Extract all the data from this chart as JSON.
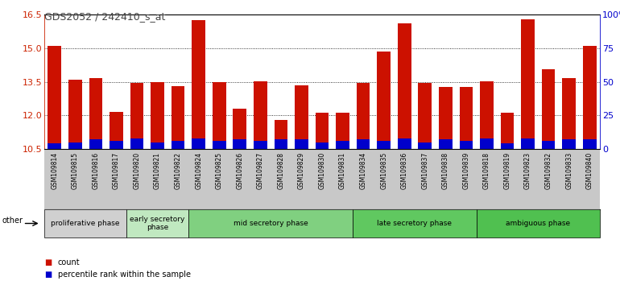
{
  "title": "GDS2052 / 242410_s_at",
  "samples": [
    "GSM109814",
    "GSM109815",
    "GSM109816",
    "GSM109817",
    "GSM109820",
    "GSM109821",
    "GSM109822",
    "GSM109824",
    "GSM109825",
    "GSM109826",
    "GSM109827",
    "GSM109828",
    "GSM109829",
    "GSM109830",
    "GSM109831",
    "GSM109834",
    "GSM109835",
    "GSM109836",
    "GSM109837",
    "GSM109838",
    "GSM109839",
    "GSM109818",
    "GSM109819",
    "GSM109823",
    "GSM109832",
    "GSM109833",
    "GSM109840"
  ],
  "count_values": [
    15.1,
    13.6,
    13.65,
    12.15,
    13.45,
    13.47,
    13.3,
    16.25,
    13.5,
    12.3,
    13.52,
    11.8,
    13.35,
    12.1,
    12.1,
    13.45,
    14.85,
    16.1,
    13.45,
    13.25,
    13.25,
    13.52,
    12.1,
    16.3,
    14.05,
    13.65,
    15.1
  ],
  "percentile_values": [
    4,
    5,
    7,
    6,
    8,
    5,
    6,
    8,
    6,
    7,
    6,
    7,
    7,
    5,
    6,
    7,
    6,
    8,
    5,
    7,
    6,
    8,
    4,
    8,
    6,
    7,
    7
  ],
  "baseline": 10.5,
  "ylim_left": [
    10.5,
    16.5
  ],
  "ylim_right": [
    0,
    100
  ],
  "yticks_left": [
    10.5,
    12.0,
    13.5,
    15.0,
    16.5
  ],
  "yticks_right": [
    0,
    25,
    50,
    75,
    100
  ],
  "phases": [
    {
      "label": "proliferative phase",
      "start": 0,
      "end": 4,
      "color": "#d0d0d0"
    },
    {
      "label": "early secretory\nphase",
      "start": 4,
      "end": 7,
      "color": "#c0e8c0"
    },
    {
      "label": "mid secretory phase",
      "start": 7,
      "end": 15,
      "color": "#80d080"
    },
    {
      "label": "late secretory phase",
      "start": 15,
      "end": 21,
      "color": "#60c860"
    },
    {
      "label": "ambiguous phase",
      "start": 21,
      "end": 27,
      "color": "#50c050"
    }
  ],
  "bar_color_red": "#cc1100",
  "bar_color_blue": "#0000cc",
  "xtick_bg_color": "#c8c8c8",
  "left_axis_color": "#cc2200",
  "right_axis_color": "#0000cc",
  "title_color": "#444444",
  "legend_count": "count",
  "legend_percentile": "percentile rank within the sample"
}
